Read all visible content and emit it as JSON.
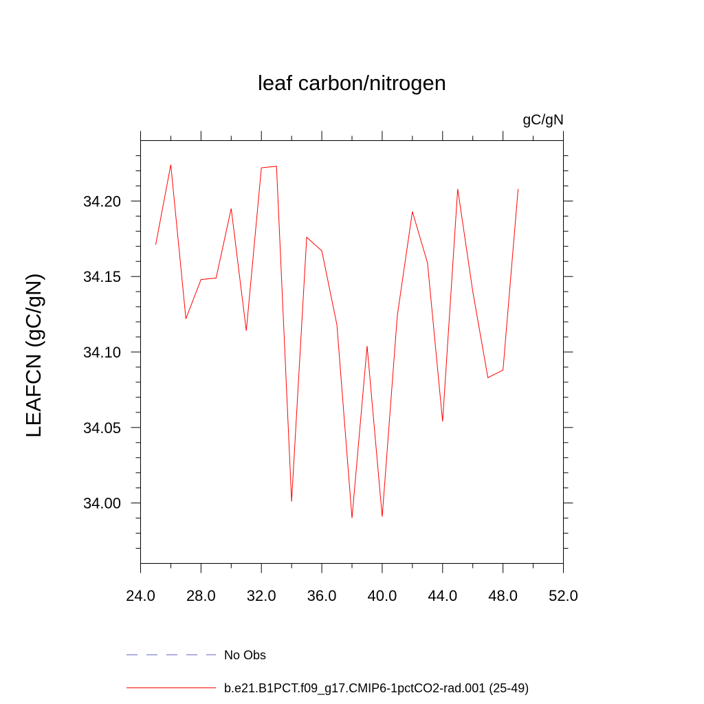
{
  "chart_data": {
    "type": "line",
    "title": "leaf carbon/nitrogen",
    "units_label": "gC/gN",
    "ylabel": "LEAFCN  (gC/gN)",
    "xlabel": "",
    "xlim": [
      24.0,
      52.0
    ],
    "ylim": [
      33.96,
      34.24
    ],
    "x_ticks": [
      "24.0",
      "28.0",
      "32.0",
      "36.0",
      "40.0",
      "44.0",
      "48.0",
      "52.0"
    ],
    "x_tick_values": [
      24,
      28,
      32,
      36,
      40,
      44,
      48,
      52
    ],
    "y_ticks": [
      "34.00",
      "34.05",
      "34.10",
      "34.15",
      "34.20"
    ],
    "y_tick_values": [
      34.0,
      34.05,
      34.1,
      34.15,
      34.2
    ],
    "grid": false,
    "legend_position": "bottom",
    "series": [
      {
        "name": "b.e21.B1PCT.f09_g17.CMIP6-1pctCO2-rad.001 (25-49)",
        "color": "#ff0000",
        "dash": "solid",
        "x": [
          25,
          26,
          27,
          28,
          29,
          30,
          31,
          32,
          33,
          34,
          35,
          36,
          37,
          38,
          39,
          40,
          41,
          42,
          43,
          44,
          45,
          46,
          47,
          48,
          49
        ],
        "y": [
          34.171,
          34.224,
          34.122,
          34.148,
          34.149,
          34.195,
          34.114,
          34.222,
          34.223,
          34.001,
          34.176,
          34.167,
          34.118,
          33.99,
          34.104,
          33.991,
          34.124,
          34.193,
          34.159,
          34.054,
          34.208,
          34.14,
          34.083,
          34.088,
          34.208
        ]
      }
    ],
    "legend": [
      {
        "name": "No Obs",
        "color": "#6a6ac8",
        "dash": "dashed"
      },
      {
        "name": "b.e21.B1PCT.f09_g17.CMIP6-1pctCO2-rad.001 (25-49)",
        "color": "#ff0000",
        "dash": "solid"
      }
    ]
  }
}
